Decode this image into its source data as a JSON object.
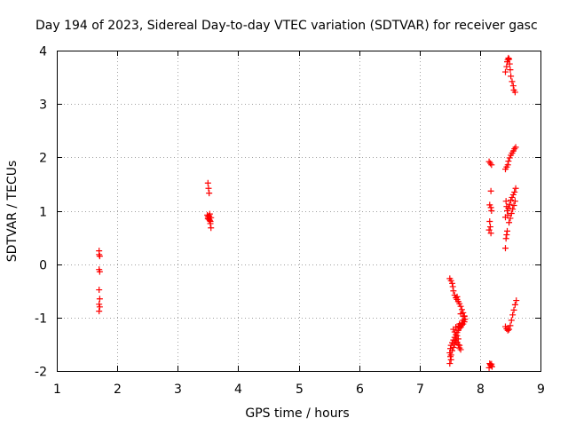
{
  "chart_data": {
    "type": "scatter",
    "title": "Day 194 of 2023, Sidereal Day-to-day VTEC variation (SDTVAR) for receiver gasc",
    "xlabel": "GPS time / hours",
    "ylabel": "SDTVAR / TECUs",
    "xlim": [
      1,
      9
    ],
    "ylim": [
      -2,
      4
    ],
    "xticks": [
      "1",
      "2",
      "3",
      "4",
      "5",
      "6",
      "7",
      "8",
      "9"
    ],
    "yticks": [
      "-2",
      "-1",
      "0",
      "1",
      "2",
      "3",
      "4"
    ],
    "grid": true,
    "marker": "+",
    "series": [
      {
        "color": "#ff0000",
        "points": [
          [
            1.7,
            0.25
          ],
          [
            1.7,
            0.18
          ],
          [
            1.71,
            0.15
          ],
          [
            1.7,
            -0.1
          ],
          [
            1.71,
            -0.14
          ],
          [
            1.7,
            -0.48
          ],
          [
            1.71,
            -0.65
          ],
          [
            1.7,
            -0.75
          ],
          [
            1.71,
            -0.8
          ],
          [
            1.7,
            -0.88
          ],
          [
            3.5,
            1.52
          ],
          [
            3.51,
            1.42
          ],
          [
            3.52,
            1.33
          ],
          [
            3.49,
            0.92
          ],
          [
            3.5,
            0.89
          ],
          [
            3.51,
            0.86
          ],
          [
            3.52,
            0.84
          ],
          [
            3.53,
            0.82
          ],
          [
            3.54,
            0.8
          ],
          [
            3.55,
            0.87
          ],
          [
            3.52,
            0.9
          ],
          [
            3.54,
            0.76
          ],
          [
            3.55,
            0.68
          ],
          [
            3.5,
            0.85
          ],
          [
            3.53,
            0.94
          ],
          [
            7.5,
            -0.27
          ],
          [
            7.52,
            -0.31
          ],
          [
            7.54,
            -0.36
          ],
          [
            7.55,
            -0.42
          ],
          [
            7.56,
            -0.5
          ],
          [
            7.58,
            -0.58
          ],
          [
            7.6,
            -0.63
          ],
          [
            7.62,
            -0.66
          ],
          [
            7.64,
            -0.7
          ],
          [
            7.66,
            -0.74
          ],
          [
            7.68,
            -0.79
          ],
          [
            7.7,
            -0.85
          ],
          [
            7.72,
            -0.91
          ],
          [
            7.74,
            -0.97
          ],
          [
            7.75,
            -1.03
          ],
          [
            7.74,
            -1.08
          ],
          [
            7.72,
            -1.12
          ],
          [
            7.7,
            -1.14
          ],
          [
            7.68,
            -1.17
          ],
          [
            7.66,
            -1.2
          ],
          [
            7.64,
            -1.24
          ],
          [
            7.62,
            -1.28
          ],
          [
            7.6,
            -1.32
          ],
          [
            7.58,
            -1.37
          ],
          [
            7.56,
            -1.42
          ],
          [
            7.54,
            -1.47
          ],
          [
            7.52,
            -1.52
          ],
          [
            7.51,
            -1.58
          ],
          [
            7.5,
            -1.66
          ],
          [
            7.51,
            -1.73
          ],
          [
            7.52,
            -1.79
          ],
          [
            7.5,
            -1.86
          ],
          [
            7.52,
            -1.7
          ],
          [
            7.54,
            -1.62
          ],
          [
            7.56,
            -1.56
          ],
          [
            7.58,
            -1.49
          ],
          [
            7.6,
            -1.43
          ],
          [
            7.62,
            -1.46
          ],
          [
            7.64,
            -1.51
          ],
          [
            7.66,
            -1.57
          ],
          [
            7.68,
            -1.6
          ],
          [
            7.66,
            -1.52
          ],
          [
            7.64,
            -1.4
          ],
          [
            7.62,
            -1.34
          ],
          [
            7.64,
            -1.16
          ],
          [
            7.66,
            -1.12
          ],
          [
            7.68,
            -1.18
          ],
          [
            7.7,
            -1.1
          ],
          [
            7.72,
            -1.05
          ],
          [
            7.74,
            -0.98
          ],
          [
            7.56,
            -1.22
          ],
          [
            7.58,
            -1.27
          ],
          [
            7.6,
            -1.18
          ],
          [
            7.62,
            -0.61
          ],
          [
            7.68,
            -0.93
          ],
          [
            8.15,
            1.92
          ],
          [
            8.17,
            1.89
          ],
          [
            8.19,
            1.86
          ],
          [
            8.18,
            1.37
          ],
          [
            8.16,
            1.11
          ],
          [
            8.18,
            1.06
          ],
          [
            8.19,
            1.0
          ],
          [
            8.16,
            0.8
          ],
          [
            8.17,
            0.7
          ],
          [
            8.15,
            0.64
          ],
          [
            8.18,
            0.58
          ],
          [
            8.16,
            -1.86
          ],
          [
            8.17,
            -1.88
          ],
          [
            8.18,
            -1.9
          ],
          [
            8.19,
            -1.87
          ],
          [
            8.2,
            -1.92
          ],
          [
            8.15,
            -1.94
          ],
          [
            8.42,
            3.6
          ],
          [
            8.44,
            3.7
          ],
          [
            8.45,
            3.79
          ],
          [
            8.46,
            3.83
          ],
          [
            8.47,
            3.86
          ],
          [
            8.48,
            3.84
          ],
          [
            8.49,
            3.75
          ],
          [
            8.5,
            3.64
          ],
          [
            8.51,
            3.52
          ],
          [
            8.53,
            3.42
          ],
          [
            8.55,
            3.34
          ],
          [
            8.56,
            3.26
          ],
          [
            8.58,
            3.22
          ],
          [
            8.42,
            1.78
          ],
          [
            8.44,
            1.82
          ],
          [
            8.46,
            1.86
          ],
          [
            8.47,
            1.93
          ],
          [
            8.49,
            1.99
          ],
          [
            8.51,
            2.04
          ],
          [
            8.53,
            2.08
          ],
          [
            8.55,
            2.12
          ],
          [
            8.57,
            2.16
          ],
          [
            8.59,
            2.19
          ],
          [
            8.43,
            1.18
          ],
          [
            8.44,
            1.08
          ],
          [
            8.45,
            1.0
          ],
          [
            8.46,
            0.92
          ],
          [
            8.42,
            0.88
          ],
          [
            8.45,
            0.62
          ],
          [
            8.44,
            0.55
          ],
          [
            8.43,
            0.48
          ],
          [
            8.42,
            0.3
          ],
          [
            8.47,
            1.05
          ],
          [
            8.49,
            1.12
          ],
          [
            8.51,
            1.2
          ],
          [
            8.53,
            1.25
          ],
          [
            8.55,
            1.3
          ],
          [
            8.57,
            1.35
          ],
          [
            8.59,
            1.42
          ],
          [
            8.48,
            0.78
          ],
          [
            8.5,
            0.86
          ],
          [
            8.52,
            0.95
          ],
          [
            8.54,
            1.03
          ],
          [
            8.56,
            1.1
          ],
          [
            8.58,
            1.18
          ],
          [
            8.42,
            -1.17
          ],
          [
            8.44,
            -1.21
          ],
          [
            8.46,
            -1.24
          ],
          [
            8.48,
            -1.22
          ],
          [
            8.5,
            -1.15
          ],
          [
            8.52,
            -1.05
          ],
          [
            8.54,
            -0.95
          ],
          [
            8.56,
            -0.86
          ],
          [
            8.58,
            -0.76
          ],
          [
            8.6,
            -0.68
          ]
        ]
      }
    ]
  }
}
